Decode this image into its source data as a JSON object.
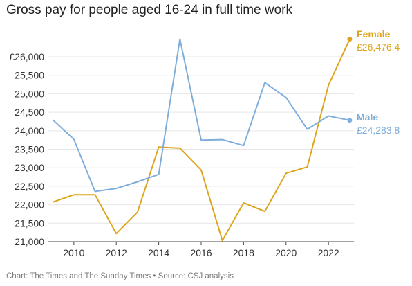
{
  "header": {
    "title": "Gross pay for people aged 16-24 in full time work"
  },
  "footer": {
    "source": "Chart: The Times and The Sunday Times • Source: CSJ analysis"
  },
  "colors": {
    "female": "#dca51d",
    "male": "#7faedb",
    "grid": "#e6e6e6",
    "axis": "#444444"
  },
  "chart_data": {
    "type": "line",
    "title": "Gross pay for people aged 16-24 in full time work",
    "xlabel": "",
    "ylabel": "",
    "x": [
      2009,
      2010,
      2011,
      2012,
      2013,
      2014,
      2015,
      2016,
      2017,
      2018,
      2019,
      2020,
      2021,
      2022,
      2023
    ],
    "xticks": [
      2010,
      2012,
      2014,
      2016,
      2018,
      2020,
      2022
    ],
    "xtick_labels": [
      "2010",
      "2012",
      "2014",
      "2016",
      "2018",
      "2020",
      "2022"
    ],
    "xlim": [
      2008.8,
      2023.2
    ],
    "ylim": [
      21000,
      26600
    ],
    "yticks": [
      21000,
      21500,
      22000,
      22500,
      23000,
      23500,
      24000,
      24500,
      25000,
      25500,
      26000
    ],
    "ytick_labels": [
      "21,000",
      "21,500",
      "22,000",
      "22,500",
      "23,000",
      "23,500",
      "24,000",
      "24,500",
      "25,000",
      "25,500",
      "£26,000"
    ],
    "grid": true,
    "series": [
      {
        "name": "Female",
        "color": "#dca51d",
        "values": [
          22070,
          22270,
          22270,
          21220,
          21800,
          23560,
          23530,
          22940,
          21030,
          22050,
          21820,
          22850,
          23020,
          25230,
          26476.4
        ],
        "end_label": "£26,476.4"
      },
      {
        "name": "Male",
        "color": "#7faedb",
        "values": [
          24300,
          23770,
          22360,
          22440,
          22620,
          22820,
          26480,
          23750,
          23760,
          23600,
          25300,
          24900,
          24040,
          24400,
          24283.8
        ],
        "end_label": "£24,283.8"
      }
    ]
  }
}
